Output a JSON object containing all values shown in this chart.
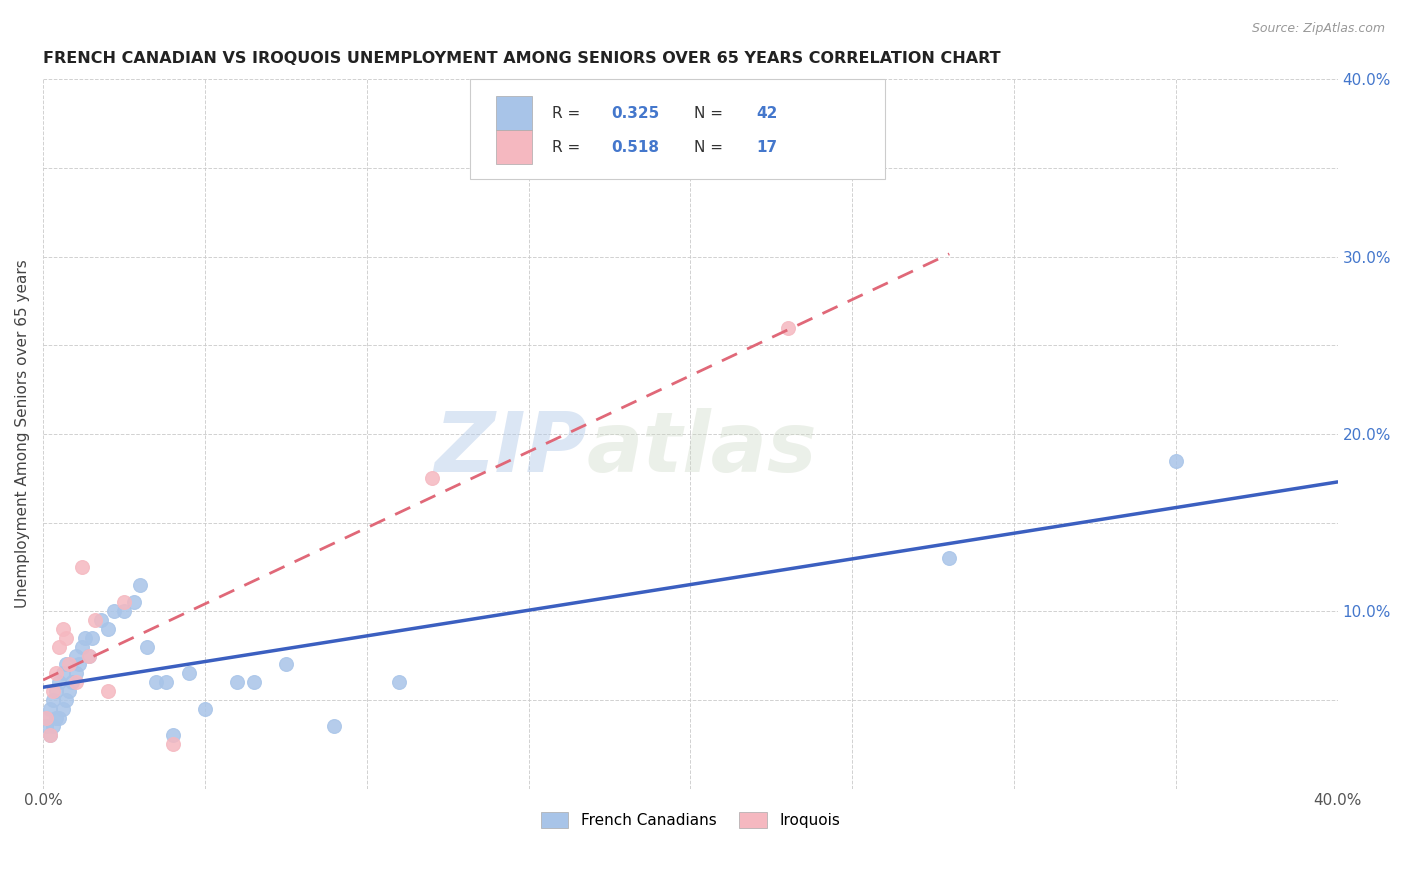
{
  "title": "FRENCH CANADIAN VS IROQUOIS UNEMPLOYMENT AMONG SENIORS OVER 65 YEARS CORRELATION CHART",
  "source": "Source: ZipAtlas.com",
  "ylabel": "Unemployment Among Seniors over 65 years",
  "xlim": [
    0.0,
    0.4
  ],
  "ylim": [
    0.0,
    0.4
  ],
  "xticks": [
    0.0,
    0.05,
    0.1,
    0.15,
    0.2,
    0.25,
    0.3,
    0.35,
    0.4
  ],
  "yticks": [
    0.0,
    0.05,
    0.1,
    0.15,
    0.2,
    0.25,
    0.3,
    0.35,
    0.4
  ],
  "legend1_R": "0.325",
  "legend1_N": "42",
  "legend2_R": "0.518",
  "legend2_N": "17",
  "blue_color": "#A8C4E8",
  "pink_color": "#F5B8C0",
  "blue_line_color": "#3B5FC0",
  "pink_line_color": "#E06878",
  "french_canadian_x": [
    0.001,
    0.001,
    0.002,
    0.002,
    0.003,
    0.003,
    0.004,
    0.004,
    0.005,
    0.005,
    0.006,
    0.006,
    0.007,
    0.007,
    0.008,
    0.009,
    0.01,
    0.01,
    0.011,
    0.012,
    0.013,
    0.014,
    0.015,
    0.018,
    0.02,
    0.022,
    0.025,
    0.028,
    0.03,
    0.032,
    0.035,
    0.038,
    0.04,
    0.045,
    0.05,
    0.06,
    0.065,
    0.075,
    0.09,
    0.11,
    0.28,
    0.35
  ],
  "french_canadian_y": [
    0.035,
    0.04,
    0.03,
    0.045,
    0.035,
    0.05,
    0.04,
    0.055,
    0.04,
    0.06,
    0.045,
    0.065,
    0.05,
    0.07,
    0.055,
    0.06,
    0.065,
    0.075,
    0.07,
    0.08,
    0.085,
    0.075,
    0.085,
    0.095,
    0.09,
    0.1,
    0.1,
    0.105,
    0.115,
    0.08,
    0.06,
    0.06,
    0.03,
    0.065,
    0.045,
    0.06,
    0.06,
    0.07,
    0.035,
    0.06,
    0.13,
    0.185
  ],
  "iroquois_x": [
    0.001,
    0.002,
    0.003,
    0.004,
    0.005,
    0.006,
    0.007,
    0.008,
    0.01,
    0.012,
    0.014,
    0.016,
    0.02,
    0.025,
    0.04,
    0.12,
    0.23
  ],
  "iroquois_y": [
    0.04,
    0.03,
    0.055,
    0.065,
    0.08,
    0.09,
    0.085,
    0.07,
    0.06,
    0.125,
    0.075,
    0.095,
    0.055,
    0.105,
    0.025,
    0.175,
    0.26
  ],
  "watermark_zip": "ZIP",
  "watermark_atlas": "atlas",
  "legend_label1": "French Canadians",
  "legend_label2": "Iroquois"
}
